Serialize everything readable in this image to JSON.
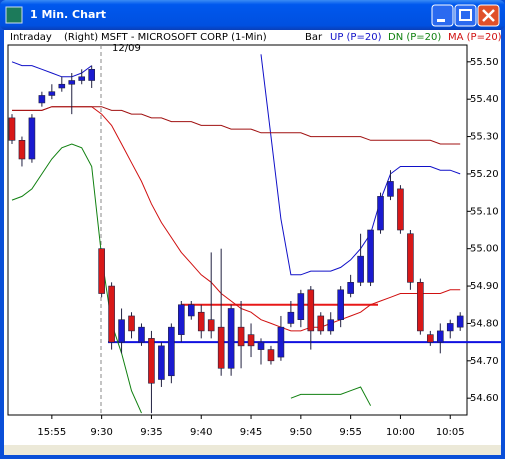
{
  "window": {
    "title": "1 Min. Chart"
  },
  "chart_data": {
    "type": "candlestick",
    "header": {
      "mode": "Intraday",
      "side": "(Right)",
      "symbol": "MSFT - MICROSOFT CORP (1-Min)",
      "date": "12/09",
      "style": "Bar"
    },
    "categories": [
      null,
      null,
      null,
      null,
      "15:55",
      null,
      null,
      null,
      null,
      "9:30",
      null,
      null,
      null,
      null,
      "9:35",
      null,
      null,
      null,
      null,
      "9:40",
      null,
      null,
      null,
      null,
      "9:45",
      null,
      null,
      null,
      null,
      "9:50",
      null,
      null,
      null,
      null,
      "9:55",
      null,
      null,
      null,
      null,
      "10:00",
      null,
      null,
      null,
      null,
      "10:05",
      null
    ],
    "open": [
      55.35,
      55.29,
      55.24,
      55.39,
      55.41,
      55.43,
      55.44,
      55.45,
      55.45,
      55.0,
      54.9,
      54.75,
      54.82,
      54.75,
      54.76,
      54.65,
      54.66,
      54.77,
      54.82,
      54.83,
      54.81,
      54.79,
      54.68,
      54.79,
      54.77,
      54.73,
      54.73,
      54.71,
      54.8,
      54.81,
      54.89,
      54.82,
      54.78,
      54.81,
      54.88,
      54.91,
      54.91,
      55.05,
      55.14,
      55.16,
      55.04,
      54.91,
      54.77,
      54.75,
      54.78,
      54.79
    ],
    "high": [
      55.36,
      55.3,
      55.36,
      55.42,
      55.44,
      55.46,
      55.47,
      55.48,
      55.49,
      55.0,
      54.91,
      54.84,
      54.83,
      54.8,
      54.78,
      54.75,
      54.8,
      54.86,
      54.86,
      54.85,
      54.99,
      55.0,
      54.85,
      54.86,
      54.8,
      54.76,
      54.74,
      54.82,
      54.86,
      54.89,
      54.9,
      54.83,
      54.83,
      54.9,
      54.93,
      55.04,
      55.05,
      55.15,
      55.21,
      55.17,
      55.05,
      54.92,
      54.78,
      54.8,
      54.81,
      54.83
    ],
    "low": [
      55.28,
      55.22,
      55.23,
      55.38,
      55.4,
      55.42,
      55.36,
      55.44,
      55.43,
      54.87,
      54.73,
      54.72,
      54.76,
      54.74,
      54.56,
      54.63,
      54.64,
      54.75,
      54.81,
      54.76,
      54.76,
      54.66,
      54.66,
      54.68,
      54.71,
      54.69,
      54.69,
      54.7,
      54.79,
      54.79,
      54.73,
      54.77,
      54.77,
      54.79,
      54.87,
      54.9,
      54.9,
      55.04,
      55.13,
      55.04,
      54.89,
      54.77,
      54.74,
      54.72,
      54.76,
      54.78
    ],
    "close": [
      55.29,
      55.24,
      55.35,
      55.41,
      55.42,
      55.44,
      55.45,
      55.46,
      55.48,
      54.88,
      54.75,
      54.81,
      54.78,
      54.79,
      54.64,
      54.74,
      54.79,
      54.85,
      54.85,
      54.78,
      54.78,
      54.68,
      54.84,
      54.74,
      54.74,
      54.75,
      54.7,
      54.79,
      54.83,
      54.88,
      54.78,
      54.78,
      54.81,
      54.89,
      54.91,
      54.98,
      55.05,
      55.14,
      55.18,
      55.05,
      54.91,
      54.78,
      54.75,
      54.78,
      54.8,
      54.82
    ],
    "up_color": "#1a1ad0",
    "down_color": "#d81818",
    "series": [
      {
        "name": "UP (P=20)",
        "color": "#1010c8",
        "values": [
          55.5,
          55.49,
          55.49,
          55.48,
          55.47,
          55.46,
          55.46,
          55.47,
          55.49,
          null,
          null,
          null,
          null,
          null,
          null,
          null,
          null,
          null,
          null,
          null,
          null,
          null,
          null,
          null,
          null,
          55.52,
          55.3,
          55.08,
          54.93,
          54.93,
          54.94,
          54.94,
          54.94,
          54.95,
          54.97,
          55.0,
          55.04,
          55.13,
          55.2,
          55.22,
          55.22,
          55.22,
          55.22,
          55.21,
          55.21,
          55.2
        ]
      },
      {
        "name": "DN (P=20)",
        "color": "#108010",
        "values": [
          55.13,
          55.14,
          55.16,
          55.2,
          55.24,
          55.27,
          55.28,
          55.27,
          55.22,
          54.98,
          54.8,
          54.72,
          54.62,
          54.56,
          null,
          null,
          null,
          null,
          null,
          null,
          null,
          null,
          null,
          null,
          null,
          null,
          null,
          null,
          54.6,
          54.61,
          54.61,
          54.61,
          54.61,
          54.61,
          54.62,
          54.63,
          54.58,
          null,
          null,
          null,
          null,
          null,
          null,
          null,
          null,
          null
        ]
      },
      {
        "name": "MA (P=20)",
        "color": "#d01010",
        "values": [
          55.37,
          55.37,
          55.37,
          55.37,
          55.38,
          55.38,
          55.38,
          55.38,
          55.38,
          55.36,
          55.33,
          55.28,
          55.23,
          55.18,
          55.12,
          55.07,
          55.03,
          54.99,
          54.96,
          54.93,
          54.91,
          54.88,
          54.86,
          54.84,
          54.83,
          54.81,
          54.8,
          54.79,
          54.78,
          54.78,
          54.79,
          54.79,
          54.8,
          54.81,
          54.82,
          54.83,
          54.85,
          54.86,
          54.87,
          54.88,
          54.88,
          54.88,
          54.88,
          54.88,
          54.89,
          54.89
        ]
      },
      {
        "color": "#a01010",
        "values": [
          55.37,
          55.37,
          55.37,
          55.37,
          55.38,
          55.38,
          55.38,
          55.38,
          55.38,
          55.38,
          55.37,
          55.37,
          55.36,
          55.36,
          55.35,
          55.35,
          55.34,
          55.34,
          55.34,
          55.33,
          55.33,
          55.33,
          55.32,
          55.32,
          55.32,
          55.31,
          55.31,
          55.31,
          55.31,
          55.31,
          55.3,
          55.3,
          55.3,
          55.3,
          55.3,
          55.3,
          55.29,
          55.29,
          55.29,
          55.29,
          55.29,
          55.29,
          55.29,
          55.28,
          55.28,
          55.28
        ]
      }
    ],
    "levels": [
      {
        "value": 54.85,
        "color": "#e81818"
      },
      {
        "value": 54.75,
        "color": "#1010e0"
      }
    ],
    "ylim": [
      54.555,
      55.545
    ],
    "yticks": [
      {
        "value": 54.6,
        "label": "54.60"
      },
      {
        "value": 54.7,
        "label": "54.70"
      },
      {
        "value": 54.8,
        "label": "54.80"
      },
      {
        "value": 54.9,
        "label": "54.90"
      },
      {
        "value": 55.0,
        "label": "55.00"
      },
      {
        "value": 55.1,
        "label": "55.10"
      },
      {
        "value": 55.2,
        "label": "55.20"
      },
      {
        "value": 55.3,
        "label": "55.30"
      },
      {
        "value": 55.4,
        "label": "55.40"
      },
      {
        "value": 55.5,
        "label": "55.50"
      }
    ]
  }
}
